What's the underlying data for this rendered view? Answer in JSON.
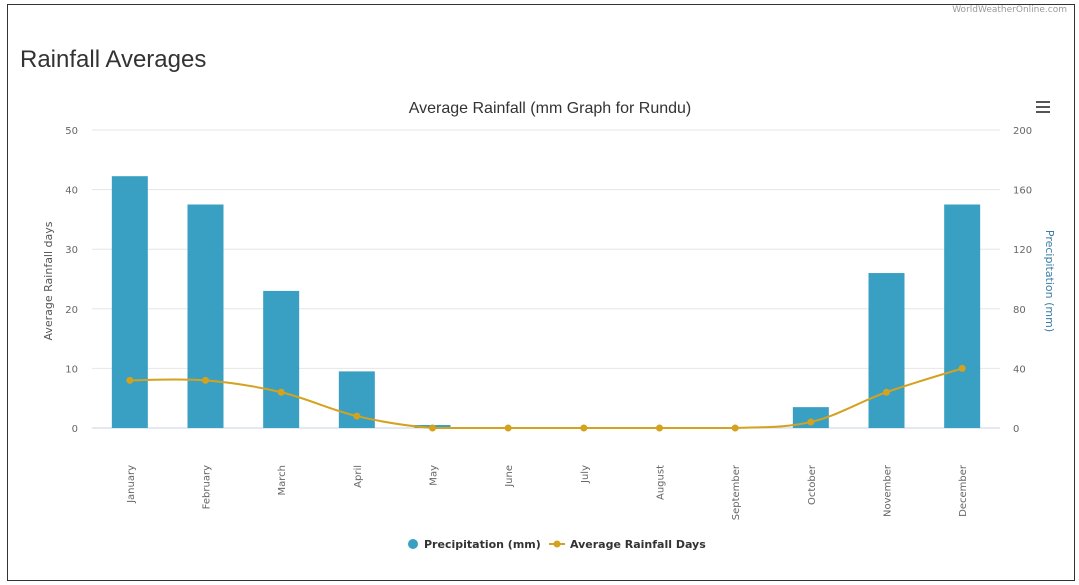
{
  "source_text": "WorldWeatherOnline.com",
  "page_title": "Rainfall Averages",
  "menu_icon": "hamburger-menu-icon",
  "chart_data": {
    "type": "bar",
    "title": "Average Rainfall (mm Graph for Rundu)",
    "categories": [
      "January",
      "February",
      "March",
      "April",
      "May",
      "June",
      "July",
      "August",
      "September",
      "October",
      "November",
      "December"
    ],
    "y_left": {
      "label": "Average Rainfall days",
      "ylim": [
        0,
        50
      ],
      "ticks": [
        "0",
        "10",
        "20",
        "30",
        "40",
        "50"
      ]
    },
    "y_right": {
      "label": "Precipitation (mm)",
      "ylim": [
        0,
        200
      ],
      "ticks": [
        "0",
        "40",
        "80",
        "120",
        "160",
        "200"
      ]
    },
    "series": [
      {
        "name": "Precipitation (mm)",
        "type": "bar",
        "axis": "right",
        "color": "#3aa0c3",
        "values": [
          169,
          150,
          92,
          38,
          2,
          0,
          0,
          0,
          0,
          14,
          104,
          150
        ]
      },
      {
        "name": "Average Rainfall Days",
        "type": "line",
        "axis": "left",
        "color": "#d4a21f",
        "values": [
          8,
          8,
          6,
          2,
          0,
          0,
          0,
          0,
          0,
          1,
          6,
          10
        ]
      }
    ],
    "grid": true,
    "legend": "bottom-center"
  }
}
